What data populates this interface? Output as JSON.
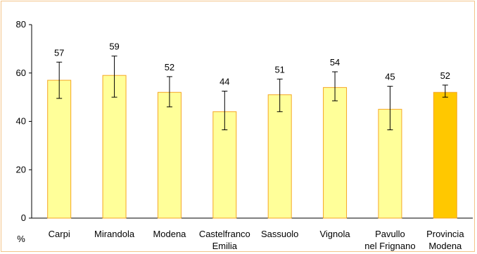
{
  "chart_data": {
    "type": "bar",
    "categories": [
      [
        "Carpi"
      ],
      [
        "Mirandola"
      ],
      [
        "Modena"
      ],
      [
        "Castelfranco",
        "Emilia"
      ],
      [
        "Sassuolo"
      ],
      [
        "Vignola"
      ],
      [
        "Pavullo",
        "nel Frignano"
      ],
      [
        "Provincia",
        "Modena"
      ]
    ],
    "values": [
      57,
      59,
      52,
      44,
      51,
      54,
      45,
      52
    ],
    "error_low": [
      49.5,
      50,
      46,
      36.5,
      44,
      48.5,
      36.5,
      50
    ],
    "error_high": [
      64.5,
      67,
      58.5,
      52.5,
      57.5,
      60.5,
      54.5,
      55
    ],
    "data_labels": [
      "57",
      "59",
      "52",
      "44",
      "51",
      "54",
      "45",
      "52"
    ],
    "ylim": [
      0,
      80
    ],
    "yticks": [
      0,
      20,
      40,
      60,
      80
    ],
    "ytick_labels": [
      "0",
      "20",
      "40",
      "60",
      "80"
    ],
    "unit_label": "%",
    "grid": false,
    "colors": {
      "bar_fill": "#ffff99",
      "bar_stroke": "#f5a623",
      "highlight_fill": "#ffc800",
      "highlight_index": 7,
      "axis": "#000000",
      "frame": "#f3c58a"
    }
  }
}
